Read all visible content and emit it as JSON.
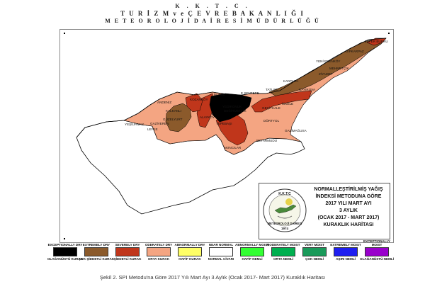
{
  "header": {
    "line1": "K . K . T . C .",
    "line2": "T U R İ Z M  v e  Ç E V R E  B A K A N L I Ğ I",
    "line3": "M E T E O R O L O J İ   D A İ R E S İ   M Ü D Ü R L Ü Ğ Ü"
  },
  "map": {
    "title_lines": [
      "NORMALLEŞTİRİLMİŞ YAĞIŞ",
      "İNDEKSİ METODUNA GÖRE",
      "2017 YILI MART AYI",
      "3 AYLIK",
      "(OCAK 2017 - MART 2017)",
      "KURAKLIK HARİTASI"
    ],
    "logo": {
      "top_text": "K.K.T.C",
      "bottom_text": "METEOROLOJİ DAİRESİ",
      "year": "1974"
    },
    "places": [
      {
        "name": "ZAFER BURNU"
      },
      {
        "name": "DİPKARPAZ"
      },
      {
        "name": "YENİ ERENKÖY"
      },
      {
        "name": "MEHMETÇİK"
      },
      {
        "name": "ZİYAMET"
      },
      {
        "name": "KANTARA"
      },
      {
        "name": "ÇAYIROVA"
      },
      {
        "name": "TATLISU"
      },
      {
        "name": "E SENTEPE"
      },
      {
        "name": "BURNE"
      },
      {
        "name": "KOZANKÖY"
      },
      {
        "name": "ANDENİZ"
      },
      {
        "name": "KALKANLI"
      },
      {
        "name": "GÜZELYURT"
      },
      {
        "name": "YEDİKONUK"
      },
      {
        "name": "DEĞİRMENLİK"
      },
      {
        "name": "GEÇİTKALE"
      },
      {
        "name": "İSKELE"
      },
      {
        "name": "DÖRTYOL"
      },
      {
        "name": "GAZİMAĞUSA"
      },
      {
        "name": "BEYARMUDU"
      },
      {
        "name": "AKINCILAR"
      },
      {
        "name": "TEPEBAŞI"
      },
      {
        "name": "GAZİVEREN"
      },
      {
        "name": "YEŞİLIRMAK"
      },
      {
        "name": "LEFKE"
      },
      {
        "name": "ALAYKÖY"
      }
    ]
  },
  "legend": [
    {
      "top": "EXCEPTIONALLY DRY",
      "bottom": "OLAĞANÜSTÜ KURAK",
      "color": "#000000"
    },
    {
      "top": "EXTREMELY DRY",
      "bottom": "ÇOK ŞİDDETLİ KURAK",
      "color": "#8b5a2b"
    },
    {
      "top": "SEVERELY DRY",
      "bottom": "ŞİDDETLİ KURAK",
      "color": "#c0361b"
    },
    {
      "top": "ODERATELY DRY",
      "bottom": "ORTA KURAK",
      "color": "#f4a582"
    },
    {
      "top": "ABNORMALLY DRY",
      "bottom": "HAFİF KURAK",
      "color": "#ffff66"
    },
    {
      "top": "NEAR NORMAL",
      "bottom": "NORMAL CİVARI",
      "color": "#ffffff"
    },
    {
      "top": "ABNORMALLY MOIST",
      "bottom": "HAFİF NEMLİ",
      "color": "#33ff33"
    },
    {
      "top": "MODERATELY MOIST",
      "bottom": "ORTA NEMLİ",
      "color": "#00b050"
    },
    {
      "top": "VERY MOIST",
      "bottom": "ÇOK NEMLİ",
      "color": "#1a9a5a"
    },
    {
      "top": "EXTREMELY MOIST",
      "bottom": "AŞIRI NEMLİ",
      "color": "#1e1ef0"
    },
    {
      "top": "EXCEPTIONALLY MOIST",
      "bottom": "OLAĞANÜSTÜ NEMLİ",
      "color": "#9900cc"
    }
  ],
  "caption": "Şekil 2. SPI Metodu'na Göre 2017 Yılı Mart Ayı 3 Aylık (Ocak 2017- Mart 2017) Kuraklık Haritası"
}
